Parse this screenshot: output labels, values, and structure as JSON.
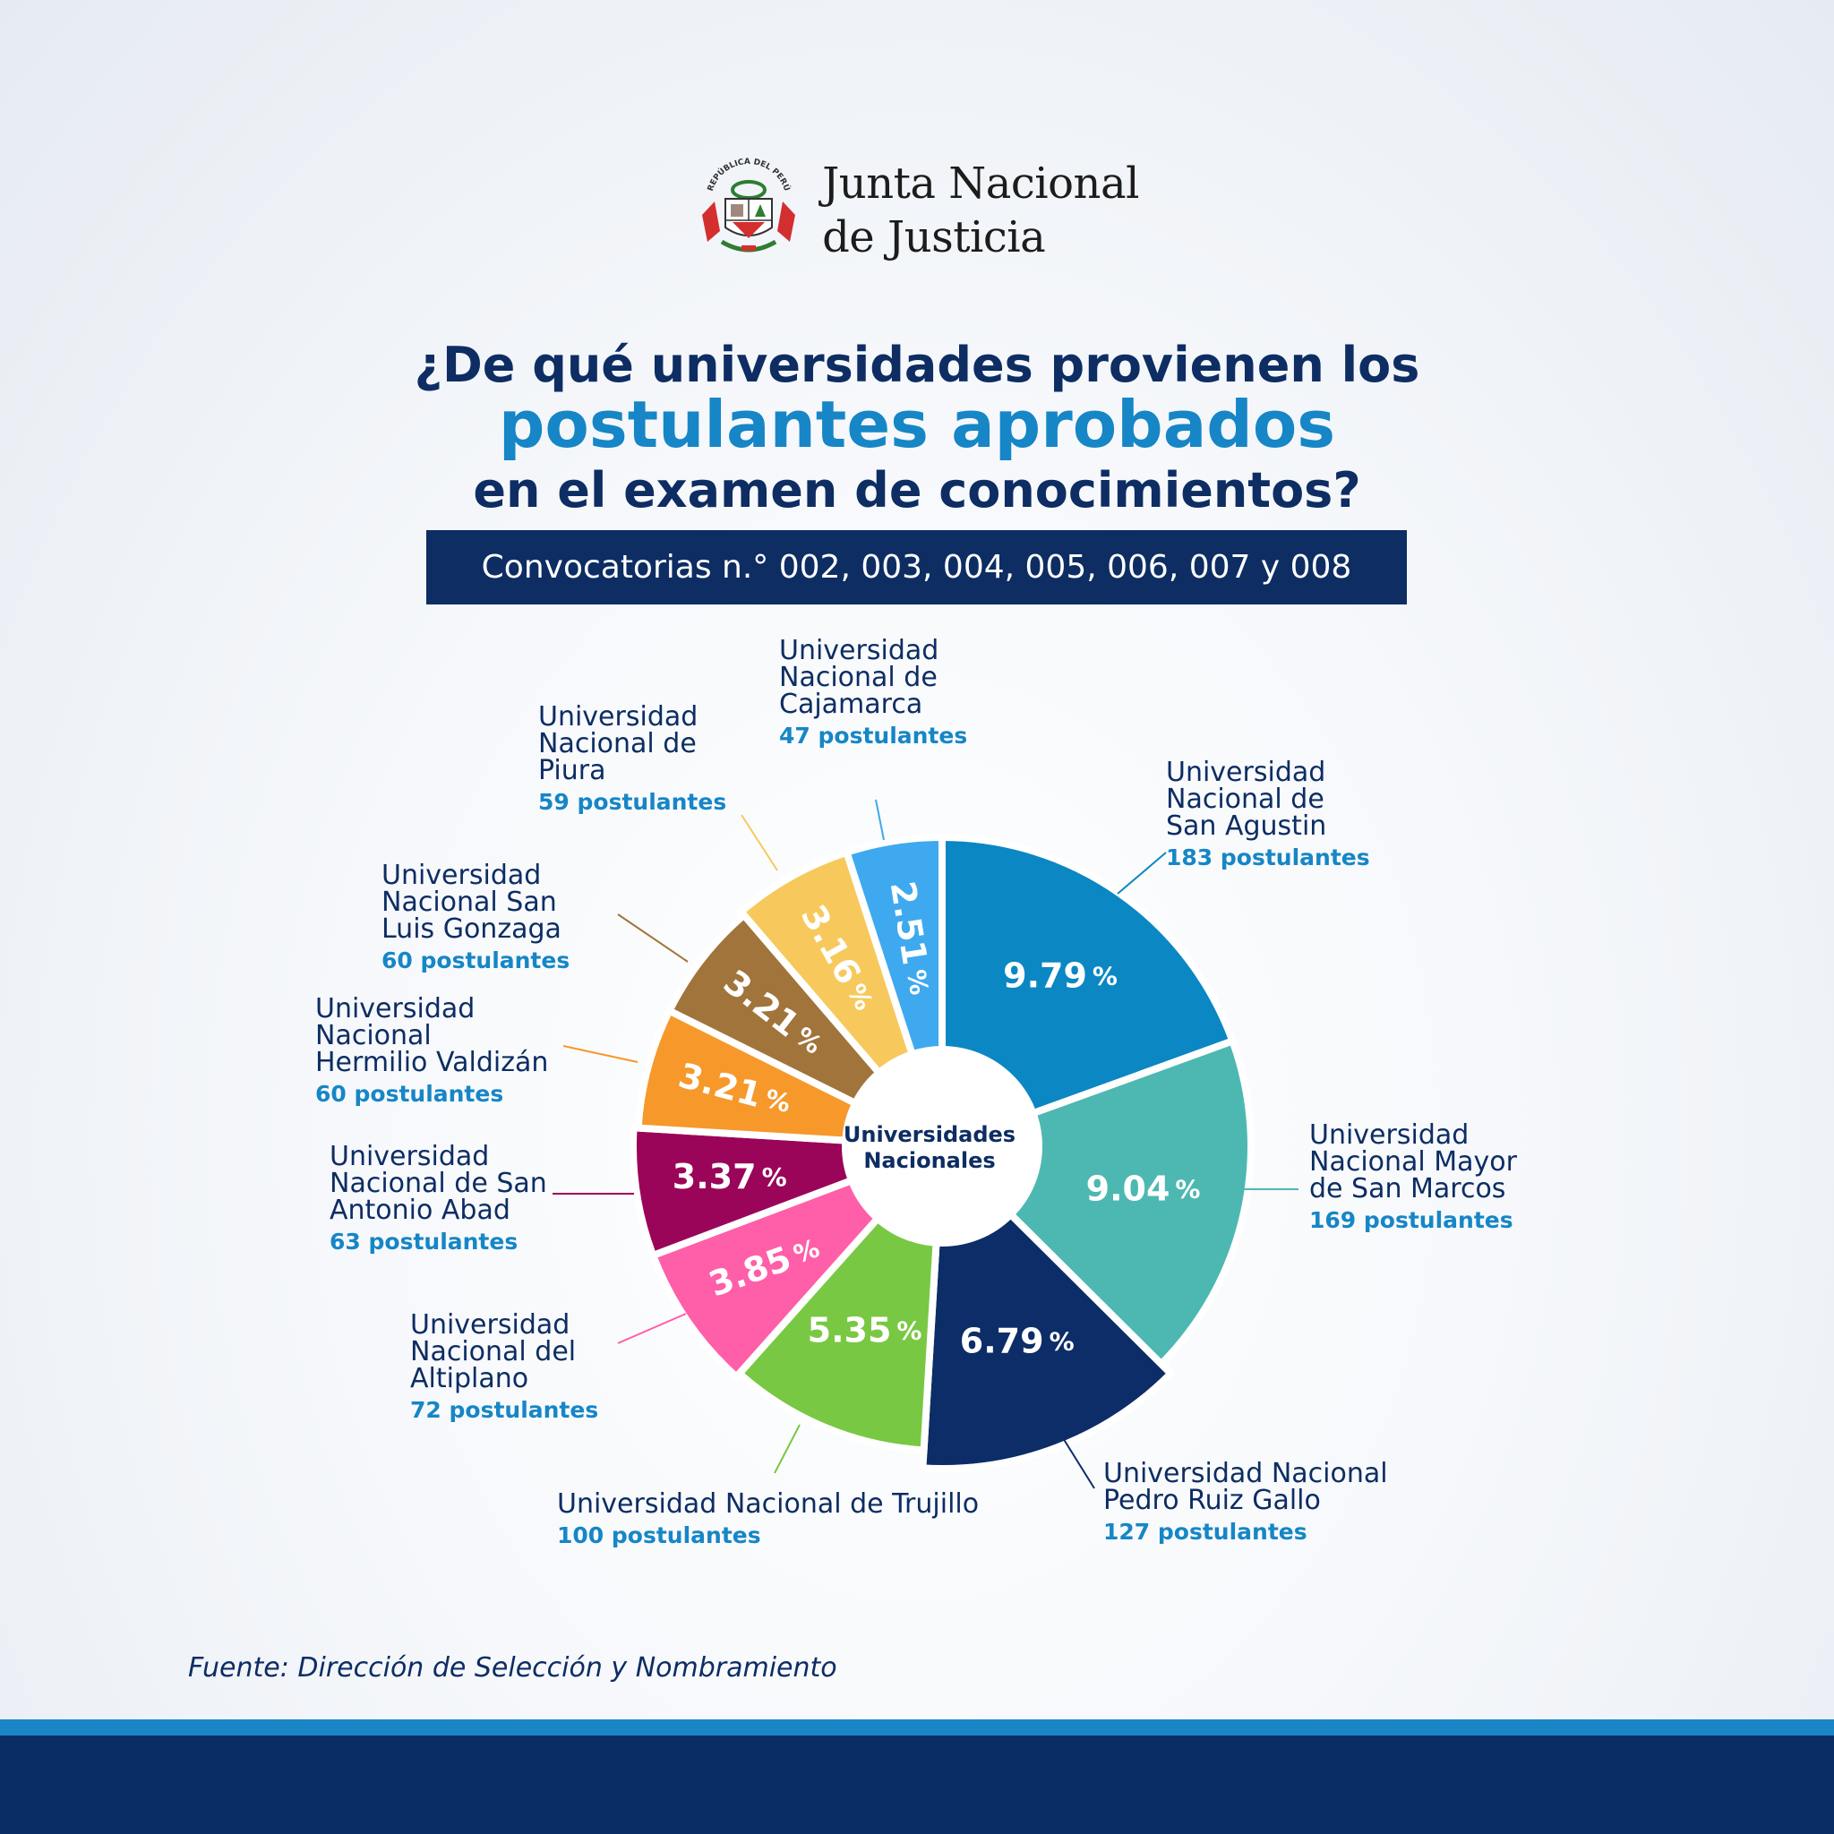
{
  "org": {
    "line1": "Junta Nacional",
    "line2": "de Justicia",
    "seal_text": "REPÚBLICA DEL PERÚ"
  },
  "title": {
    "line1": "¿De qué universidades provienen los",
    "line2": "postulantes aprobados",
    "line3": "en el examen de conocimientos?"
  },
  "subtitle": "Convocatorias n.° 002, 003, 004, 005, 006, 007 y 008",
  "source": "Fuente: Dirección de Selección y Nombramiento",
  "colors": {
    "navy": "#0d2d63",
    "accent": "#1686c6"
  },
  "chart_data": {
    "type": "pie",
    "center_label": [
      "Universidades",
      "Nacionales"
    ],
    "unit": "postulantes",
    "slices": [
      {
        "name": [
          "Universidad",
          "Nacional de",
          "San Agustin"
        ],
        "count": "183 postulantes",
        "value": 9.79,
        "label": "9.79",
        "color": "#0b87c3"
      },
      {
        "name": [
          "Universidad",
          "Nacional Mayor",
          "de San Marcos"
        ],
        "count": "169 postulantes",
        "value": 9.04,
        "label": "9.04",
        "color": "#4db8b1"
      },
      {
        "name": [
          "Universidad Nacional",
          "Pedro Ruiz Gallo"
        ],
        "count": "127 postulantes",
        "value": 6.79,
        "label": "6.79",
        "color": "#0c2d67"
      },
      {
        "name": [
          "Universidad Nacional de Trujillo"
        ],
        "count": "100 postulantes",
        "value": 5.35,
        "label": "5.35",
        "color": "#79c843"
      },
      {
        "name": [
          "Universidad",
          "Nacional del",
          "Altiplano"
        ],
        "count": "72 postulantes",
        "value": 3.85,
        "label": "3.85",
        "color": "#ff5ea8"
      },
      {
        "name": [
          "Universidad",
          "Nacional de San",
          "Antonio Abad"
        ],
        "count": "63 postulantes",
        "value": 3.37,
        "label": "3.37",
        "color": "#9a0559"
      },
      {
        "name": [
          "Universidad",
          "Nacional",
          "Hermilio Valdizán"
        ],
        "count": "60 postulantes",
        "value": 3.21,
        "label": "3.21",
        "color": "#f7982b"
      },
      {
        "name": [
          "Universidad",
          "Nacional San",
          "Luis Gonzaga"
        ],
        "count": "60 postulantes",
        "value": 3.21,
        "label": "3.21",
        "color": "#a1743c"
      },
      {
        "name": [
          "Universidad",
          "Nacional de",
          "Piura"
        ],
        "count": "59 postulantes",
        "value": 3.16,
        "label": "3.16",
        "color": "#f7c95c"
      },
      {
        "name": [
          "Universidad",
          "Nacional de",
          "Cajamarca"
        ],
        "count": "47 postulantes",
        "value": 2.51,
        "label": "2.51",
        "color": "#3ea9ef"
      }
    ]
  }
}
